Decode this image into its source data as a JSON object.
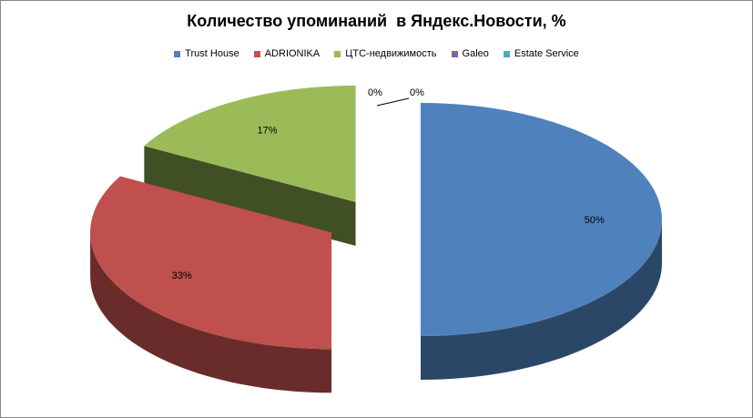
{
  "chart_data": {
    "type": "pie",
    "title": "Количество упоминаний  в Яндекс.Новости, %",
    "legend_position": "top",
    "style": "3d-exploded",
    "slices": [
      {
        "name": "Trust House",
        "value": 50,
        "label": "50%",
        "color": "#4F81BD"
      },
      {
        "name": "ADRIONIKA",
        "value": 33,
        "label": "33%",
        "color": "#C0504D"
      },
      {
        "name": "ЦТС-недвижимость",
        "value": 17,
        "label": "17%",
        "color": "#9BBB59"
      },
      {
        "name": "Galeo",
        "value": 0,
        "label": "0%",
        "color": "#8064A2"
      },
      {
        "name": "Estate Service",
        "value": 0,
        "label": "0%",
        "color": "#4BACC6"
      }
    ]
  }
}
